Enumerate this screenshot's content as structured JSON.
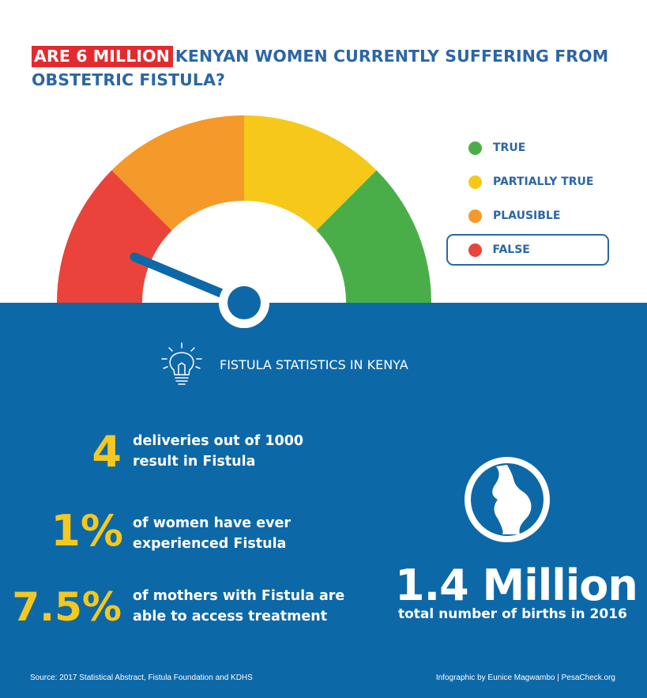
{
  "headline": {
    "highlight": "ARE 6 MILLION",
    "rest": "KENYAN WOMEN CURRENTLY SUFFERING FROM OBSTETRIC FISTULA?"
  },
  "gauge": {
    "colors": {
      "false": "#e9433b",
      "plausible": "#f4992a",
      "partially_true": "#f6c81a",
      "true": "#4aae48",
      "needle": "#0d68a8"
    },
    "verdict": "FALSE"
  },
  "legend": {
    "items": [
      {
        "label": "TRUE",
        "color": "#4aae48"
      },
      {
        "label": "PARTIALLY TRUE",
        "color": "#f6c81a"
      },
      {
        "label": "PLAUSIBLE",
        "color": "#f4992a"
      },
      {
        "label": "FALSE",
        "color": "#e9433b"
      }
    ],
    "selected_index": 3
  },
  "stats": {
    "heading": "FISTULA STATISTICS IN KENYA",
    "icon": "lightbulb-icon",
    "items": [
      {
        "value": "4",
        "line1": "deliveries out of 1000",
        "line2": "result in Fistula"
      },
      {
        "value": "1%",
        "line1": "of women have ever",
        "line2": "experienced Fistula"
      },
      {
        "value": "7.5%",
        "line1": "of mothers with Fistula are",
        "line2": "able to access treatment"
      }
    ],
    "births": {
      "icon": "pregnant-woman-icon",
      "value": "1.4 Million",
      "caption": "total number of births in 2016"
    }
  },
  "footer": {
    "source": "Source: 2017 Statistical Abstract, Fistula Foundation and KDHS",
    "credit": "Infographic by Eunice Magwambo | PesaCheck.org"
  },
  "theme": {
    "blue": "#0d68a8",
    "title_blue": "#2c66a5",
    "yellow": "#f4c81f",
    "red": "#e32b2f"
  }
}
